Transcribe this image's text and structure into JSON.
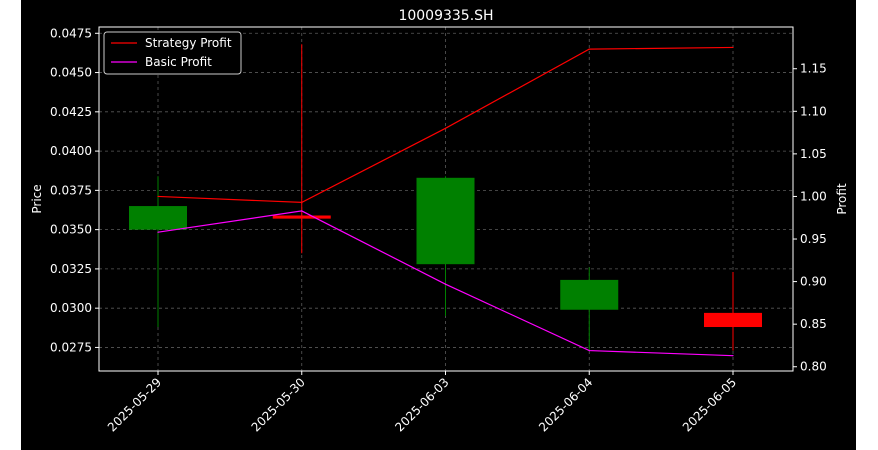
{
  "chart_data": {
    "type": "candlestick",
    "title": "10009335.SH",
    "xlabel": "",
    "ylabel_left": "Price",
    "ylabel_right": "Profit",
    "categories": [
      "2025-05-29",
      "2025-05-30",
      "2025-06-03",
      "2025-06-04",
      "2025-06-05"
    ],
    "ohlc": [
      {
        "date": "2025-05-29",
        "open": 0.035,
        "high": 0.0384,
        "low": 0.0288,
        "close": 0.0365
      },
      {
        "date": "2025-05-30",
        "open": 0.0359,
        "high": 0.0468,
        "low": 0.0335,
        "close": 0.0357
      },
      {
        "date": "2025-06-03",
        "open": 0.0328,
        "high": 0.0384,
        "low": 0.0295,
        "close": 0.0383
      },
      {
        "date": "2025-06-04",
        "open": 0.0299,
        "high": 0.0326,
        "low": 0.0273,
        "close": 0.0318
      },
      {
        "date": "2025-06-05",
        "open": 0.0297,
        "high": 0.0323,
        "low": 0.0273,
        "close": 0.0288
      }
    ],
    "series": [
      {
        "name": "Strategy Profit",
        "axis": "right",
        "color": "#ff0000",
        "values": [
          1.0,
          0.993,
          1.08,
          1.173,
          1.175
        ]
      },
      {
        "name": "Basic Profit",
        "axis": "right",
        "color": "#ff00ff",
        "values": [
          0.958,
          0.983,
          0.897,
          0.819,
          0.813
        ]
      }
    ],
    "ylim_left": [
      0.026,
      0.0479
    ],
    "ylim_right": [
      0.795,
      1.199
    ],
    "yticks_left": [
      "0.0275",
      "0.0300",
      "0.0325",
      "0.0350",
      "0.0375",
      "0.0400",
      "0.0425",
      "0.0450",
      "0.0475"
    ],
    "yticks_right": [
      "0.80",
      "0.85",
      "0.90",
      "0.95",
      "1.00",
      "1.05",
      "1.10",
      "1.15"
    ],
    "up_color": "#008000",
    "down_color": "#ff0000",
    "background": "#000000",
    "grid": true,
    "legend": "top-left"
  }
}
